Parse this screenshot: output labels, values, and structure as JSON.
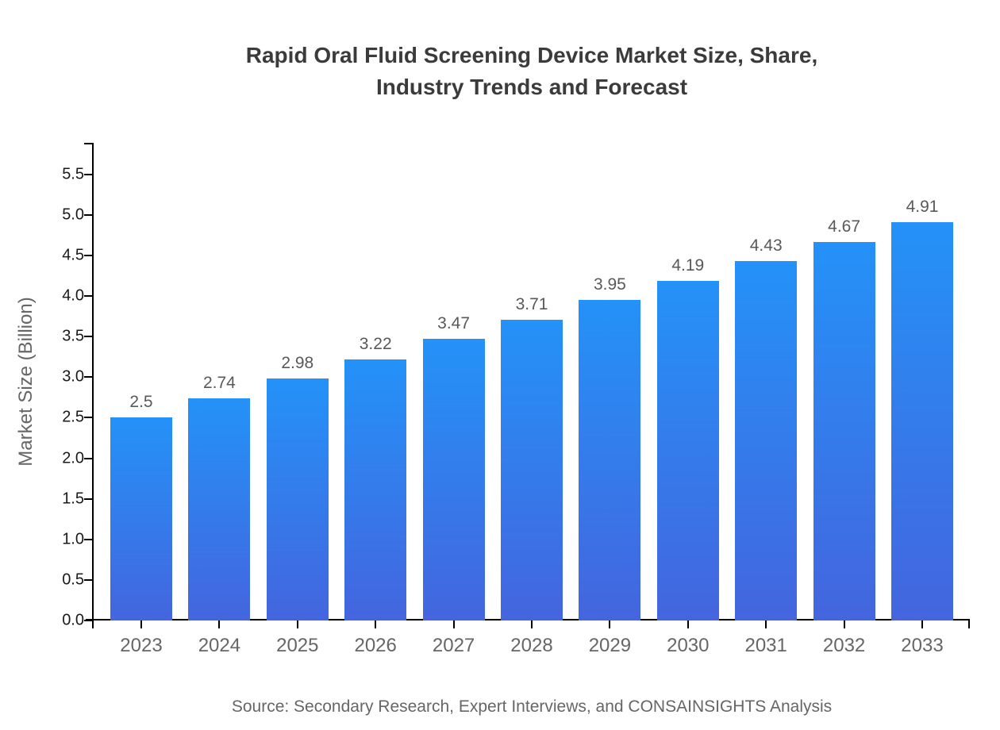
{
  "title": {
    "lines": [
      "Rapid Oral Fluid Screening Device Market Size, Share,",
      "Industry Trends and Forecast"
    ],
    "full": "Rapid Oral Fluid Screening Device Market Size, Share, Industry Trends and Forecast"
  },
  "footer": {
    "source": "Source: Secondary Research, Expert Interviews, and CONSAINSIGHTS Analysis"
  },
  "chart_data": {
    "type": "bar",
    "title": "Rapid Oral Fluid Screening Device Market Size, Share, Industry Trends and Forecast",
    "xlabel": "",
    "ylabel": "Market Size (Billion)",
    "categories": [
      "2023",
      "2024",
      "2025",
      "2026",
      "2027",
      "2028",
      "2029",
      "2030",
      "2031",
      "2032",
      "2033"
    ],
    "values": [
      2.5,
      2.74,
      2.98,
      3.22,
      3.47,
      3.71,
      3.95,
      4.19,
      4.43,
      4.67,
      4.91
    ],
    "value_labels": [
      "2.5",
      "2.74",
      "2.98",
      "3.22",
      "3.47",
      "3.71",
      "3.95",
      "4.19",
      "4.43",
      "4.67",
      "4.91"
    ],
    "ytick_labels": [
      "0.0",
      "0.5",
      "1.0",
      "1.5",
      "2.0",
      "2.5",
      "3.0",
      "3.5",
      "4.0",
      "4.5",
      "5.0",
      "5.5"
    ],
    "ylim": [
      0,
      5.89
    ],
    "grid": false,
    "legend": "none",
    "colors": {
      "bar_gradient_top": "#2492f8",
      "bar_gradient_bottom": "#4465de",
      "title_text": "#3b3b3b",
      "axis_line": "#000000",
      "ytick_text": "#1a1a1a",
      "xtick_text": "#666666",
      "value_label_text": "#595959",
      "source_text": "#666666",
      "background": "#ffffff"
    }
  }
}
